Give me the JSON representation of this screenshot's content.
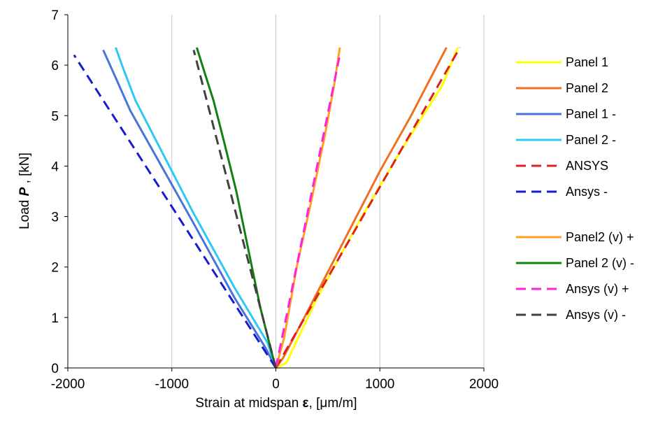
{
  "chart_data": {
    "type": "line",
    "xlabel": {
      "prefix": "Strain at midspan ",
      "symbol": "ε",
      "suffix": ", [μm/m]"
    },
    "ylabel": {
      "prefix": "Load ",
      "symbol": "P",
      "suffix": " , [kN]"
    },
    "xlim": [
      -2000,
      2000
    ],
    "ylim": [
      0,
      7
    ],
    "x_ticks": [
      -2000,
      -1000,
      0,
      1000,
      2000
    ],
    "y_ticks": [
      0,
      1,
      2,
      3,
      4,
      5,
      6,
      7
    ],
    "grid": {
      "x": true,
      "y": false
    },
    "legend_position": "right",
    "series": [
      {
        "name": "Panel 1",
        "color": "#ffff00",
        "dash": "solid",
        "legend_group": 1,
        "points": [
          [
            0,
            0
          ],
          [
            100,
            0.1
          ],
          [
            400,
            1.4
          ],
          [
            800,
            2.9
          ],
          [
            1200,
            4.3
          ],
          [
            1600,
            5.6
          ],
          [
            1750,
            6.35
          ]
        ]
      },
      {
        "name": "Panel 2",
        "color": "#f07020",
        "dash": "solid",
        "legend_group": 1,
        "points": [
          [
            0,
            0
          ],
          [
            70,
            0.2
          ],
          [
            300,
            1.1
          ],
          [
            700,
            2.7
          ],
          [
            1000,
            3.9
          ],
          [
            1300,
            5.0
          ],
          [
            1640,
            6.35
          ]
        ]
      },
      {
        "name": "Panel 1 -",
        "color": "#4a74d8",
        "dash": "solid",
        "legend_group": 1,
        "points": [
          [
            0,
            0
          ],
          [
            -100,
            0.4
          ],
          [
            -400,
            1.4
          ],
          [
            -800,
            2.9
          ],
          [
            -1100,
            4.0
          ],
          [
            -1400,
            5.1
          ],
          [
            -1550,
            5.8
          ],
          [
            -1660,
            6.3
          ]
        ]
      },
      {
        "name": "Panel 2 -",
        "color": "#2ec8f0",
        "dash": "solid",
        "legend_group": 1,
        "points": [
          [
            0,
            0
          ],
          [
            -80,
            0.5
          ],
          [
            -400,
            1.6
          ],
          [
            -800,
            3.1
          ],
          [
            -1100,
            4.3
          ],
          [
            -1350,
            5.3
          ],
          [
            -1470,
            5.95
          ],
          [
            -1540,
            6.35
          ]
        ]
      },
      {
        "name": "ANSYS",
        "color": "#e02020",
        "dash": "dashed",
        "legend_group": 1,
        "points": [
          [
            0,
            0
          ],
          [
            1770,
            6.35
          ]
        ]
      },
      {
        "name": "Ansys -",
        "color": "#1a1ad0",
        "dash": "dashed",
        "legend_group": 1,
        "points": [
          [
            0,
            0
          ],
          [
            -1940,
            6.2
          ]
        ]
      },
      {
        "name": "Panel2 (v) +",
        "color": "#ffa020",
        "dash": "solid",
        "legend_group": 2,
        "points": [
          [
            0,
            0
          ],
          [
            80,
            0.6
          ],
          [
            200,
            2.0
          ],
          [
            340,
            3.3
          ],
          [
            480,
            4.7
          ],
          [
            560,
            5.6
          ],
          [
            615,
            6.35
          ]
        ]
      },
      {
        "name": "Panel 2 (v) -",
        "color": "#108010",
        "dash": "solid",
        "legend_group": 2,
        "points": [
          [
            0,
            0
          ],
          [
            -40,
            0.3
          ],
          [
            -150,
            1.2
          ],
          [
            -250,
            2.2
          ],
          [
            -380,
            3.5
          ],
          [
            -500,
            4.5
          ],
          [
            -600,
            5.3
          ],
          [
            -700,
            5.95
          ],
          [
            -760,
            6.35
          ]
        ]
      },
      {
        "name": "Ansys (v) +",
        "color": "#ff20e0",
        "dash": "dashed",
        "legend_group": 2,
        "points": [
          [
            0,
            0
          ],
          [
            610,
            6.15
          ]
        ]
      },
      {
        "name": "Ansys (v) -",
        "color": "#404040",
        "dash": "dashed",
        "legend_group": 2,
        "points": [
          [
            0,
            0
          ],
          [
            -790,
            6.3
          ]
        ]
      }
    ]
  }
}
